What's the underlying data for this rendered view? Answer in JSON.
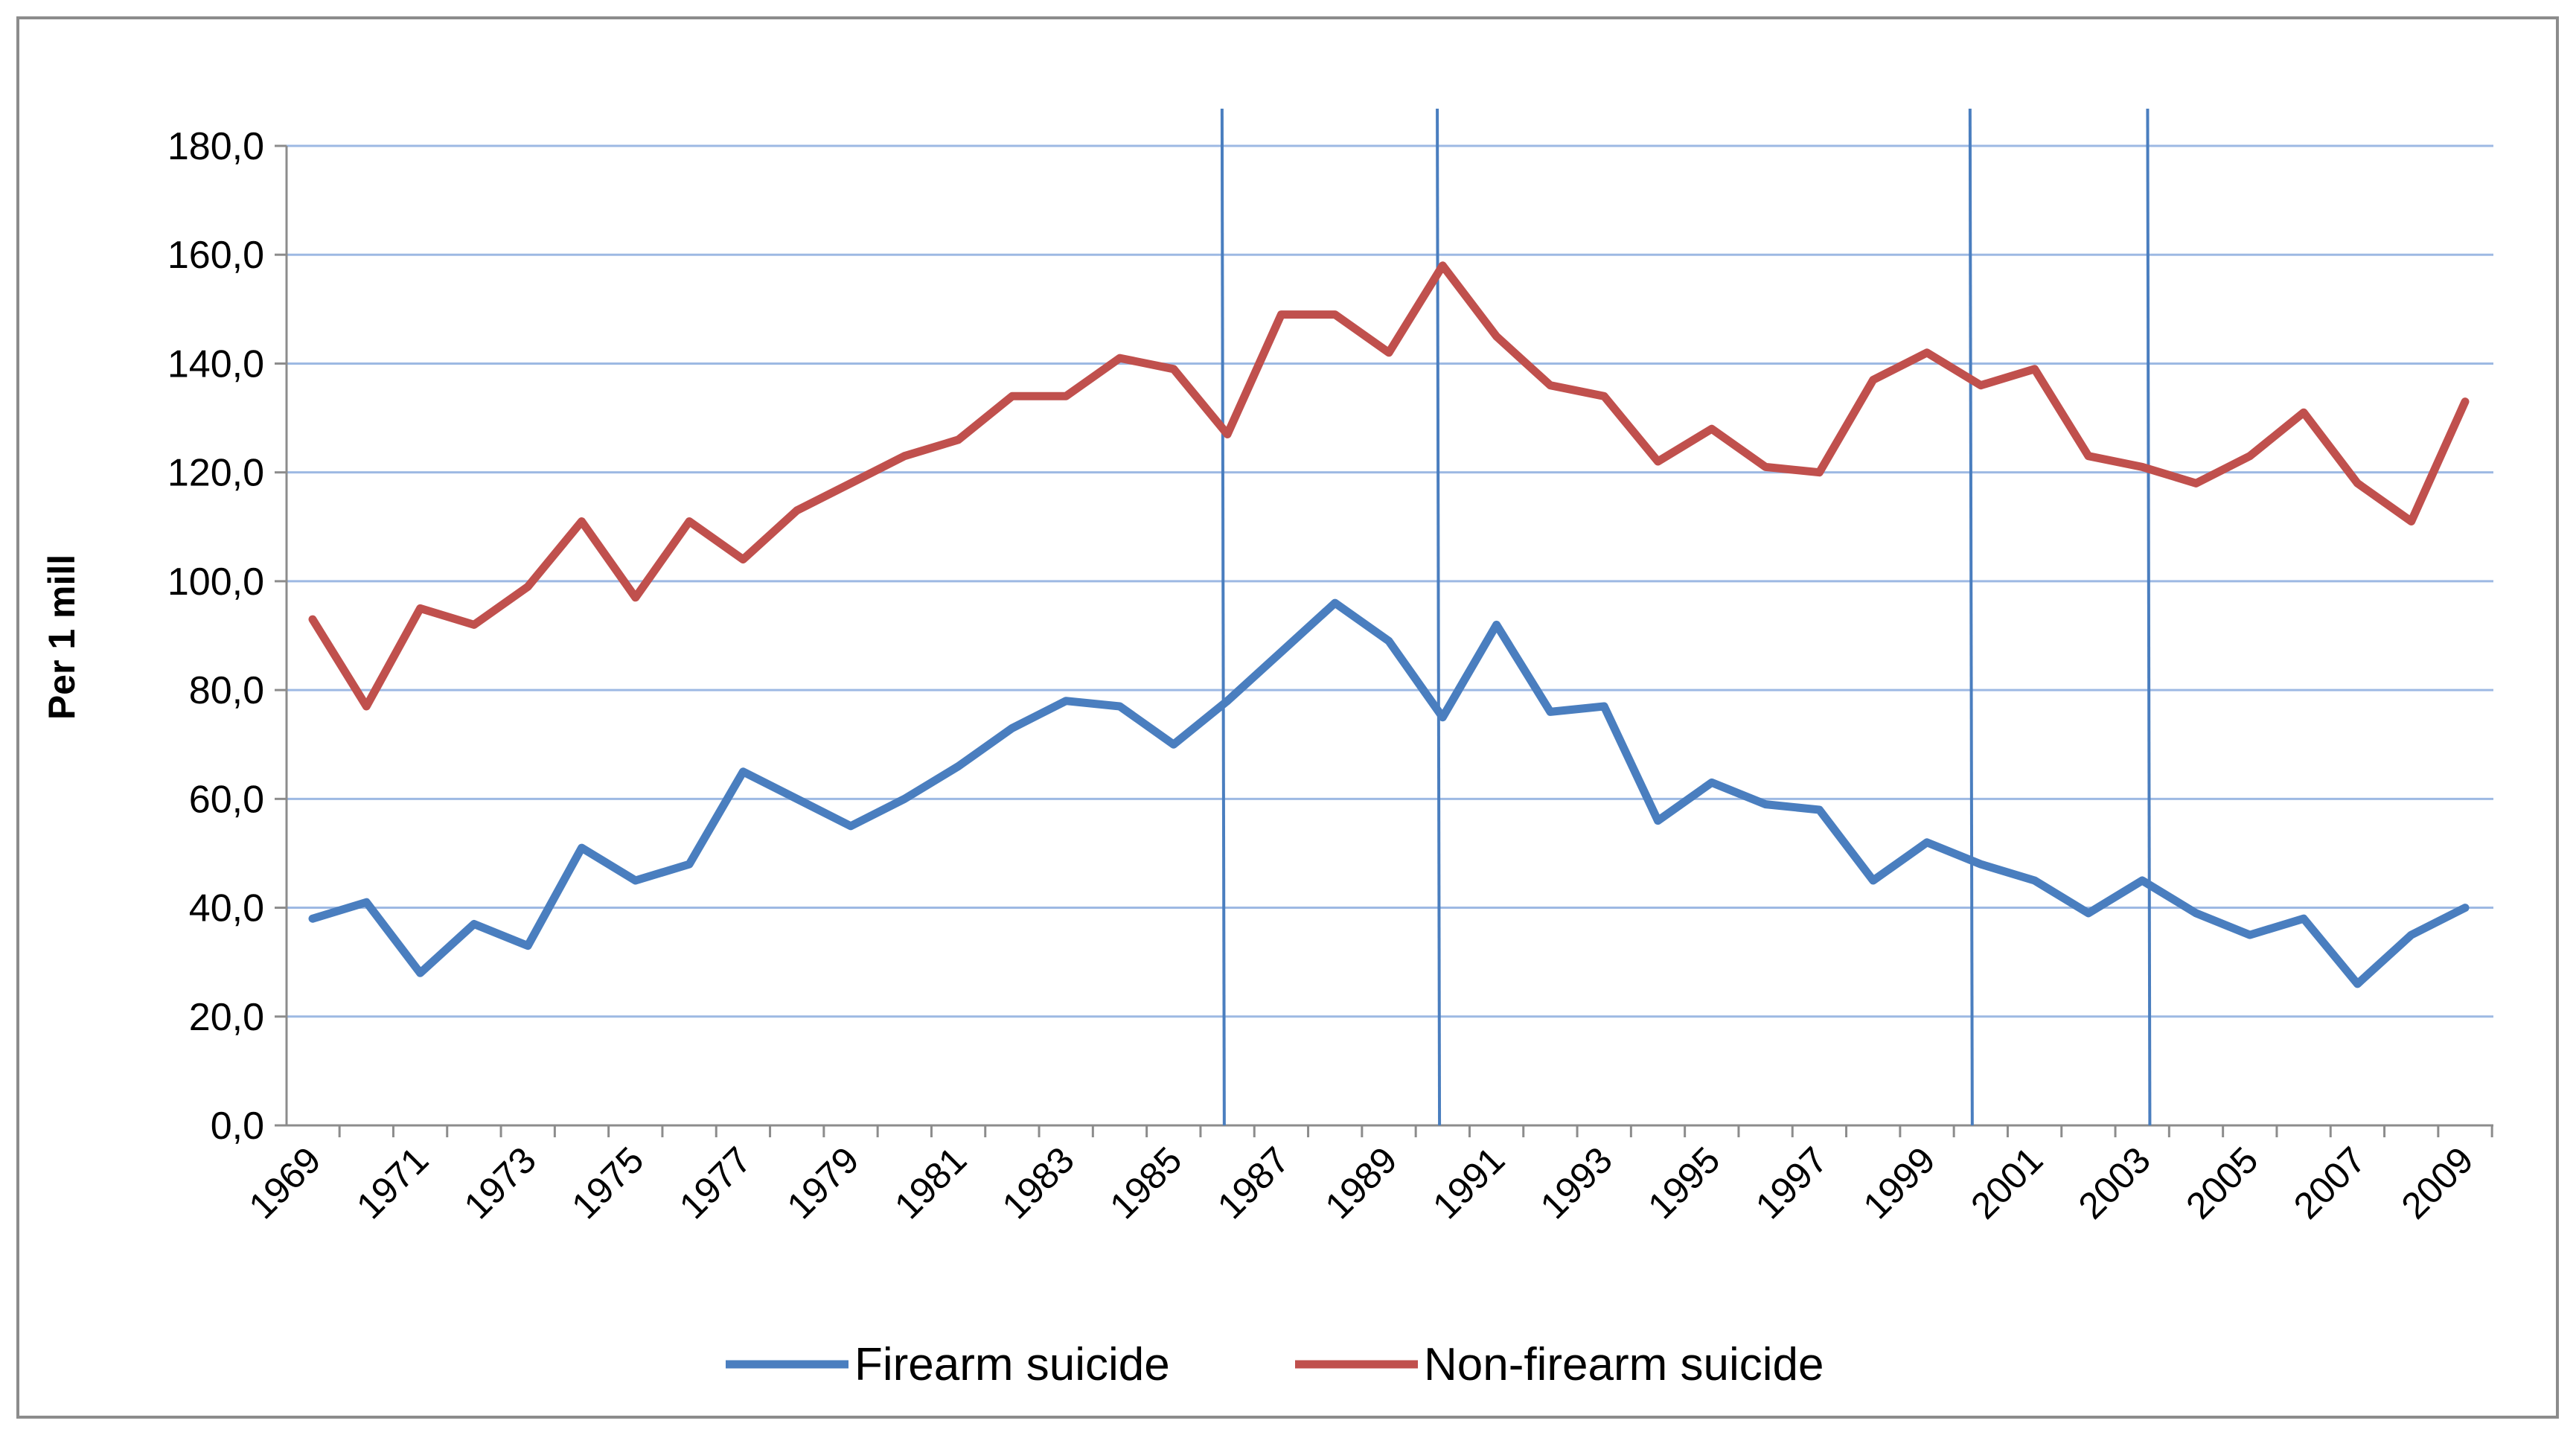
{
  "chart_data": {
    "type": "line",
    "title": "",
    "xlabel": "",
    "ylabel": "Per 1 mill",
    "ylim": [
      0,
      180
    ],
    "yticks": [
      "0,0",
      "20,0",
      "40,0",
      "60,0",
      "80,0",
      "100,0",
      "120,0",
      "140,0",
      "160,0",
      "180,0"
    ],
    "grid": true,
    "legend_position": "bottom",
    "x": [
      1969,
      1970,
      1971,
      1972,
      1973,
      1974,
      1975,
      1976,
      1977,
      1978,
      1979,
      1980,
      1981,
      1982,
      1983,
      1984,
      1985,
      1986,
      1987,
      1988,
      1989,
      1990,
      1991,
      1992,
      1993,
      1994,
      1995,
      1996,
      1997,
      1998,
      1999,
      2000,
      2001,
      2002,
      2003,
      2004,
      2005,
      2006,
      2007,
      2008,
      2009
    ],
    "xtick_labels": [
      "1969",
      "1971",
      "1973",
      "1975",
      "1977",
      "1979",
      "1981",
      "1983",
      "1985",
      "1987",
      "1989",
      "1991",
      "1993",
      "1995",
      "1997",
      "1999",
      "2001",
      "2003",
      "2005",
      "2007",
      "2009"
    ],
    "series": [
      {
        "name": "Firearm suicide",
        "color": "#4a7ebf",
        "values": [
          38,
          41,
          28,
          37,
          33,
          51,
          45,
          48,
          65,
          60,
          55,
          60,
          66,
          73,
          78,
          77,
          70,
          78,
          87,
          96,
          89,
          75,
          92,
          76,
          77,
          56,
          63,
          59,
          58,
          45,
          52,
          48,
          45,
          39,
          45,
          39,
          35,
          38,
          26,
          35,
          40
        ]
      },
      {
        "name": "Non-firearm suicide",
        "color": "#c0504d",
        "values": [
          93,
          77,
          95,
          92,
          99,
          111,
          97,
          111,
          104,
          113,
          118,
          123,
          126,
          134,
          134,
          141,
          139,
          127,
          149,
          149,
          142,
          158,
          145,
          136,
          134,
          122,
          128,
          121,
          120,
          137,
          142,
          136,
          139,
          123,
          121,
          118,
          123,
          131,
          118,
          111,
          133
        ]
      }
    ],
    "vertical_markers": {
      "color": "#4a7ebf",
      "years": [
        1985.9,
        1989.9,
        1999.8,
        2003.1
      ]
    }
  }
}
